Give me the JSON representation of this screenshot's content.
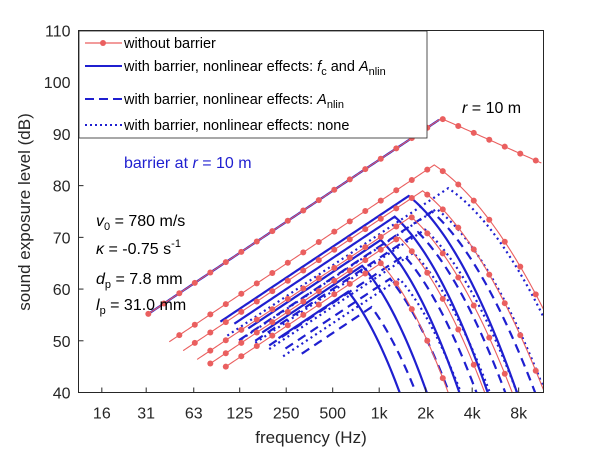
{
  "chart_data": {
    "type": "line",
    "xscale": "log2",
    "xlabel": "frequency (Hz)",
    "ylabel": "sound exposure level (dB)",
    "xlim": [
      11.3,
      11585
    ],
    "ylim": [
      40,
      110
    ],
    "xticks": [
      16,
      31,
      63,
      125,
      250,
      500,
      1000,
      2000,
      4000,
      8000
    ],
    "xtick_labels": [
      "16",
      "31",
      "63",
      "125",
      "250",
      "500",
      "1k",
      "2k",
      "4k",
      "8k"
    ],
    "yticks": [
      40,
      50,
      60,
      70,
      80,
      90,
      100,
      110
    ],
    "ytick_labels": [
      "40",
      "50",
      "60",
      "70",
      "80",
      "90",
      "100",
      "110"
    ],
    "colors": {
      "red": "#ea5f5f",
      "blue": "#1f1fd0",
      "axis": "#262626"
    },
    "legend": [
      {
        "style": "red-dot-line",
        "label": "without barrier"
      },
      {
        "style": "blue-solid",
        "label": "with barrier, nonlinear effects: ",
        "italic": "f",
        "sub": "c",
        "mid": " and ",
        "italic2": "A",
        "sub2": "nlin"
      },
      {
        "style": "blue-dashed",
        "label": "with barrier, nonlinear effects: ",
        "italic": "A",
        "sub": "nlin"
      },
      {
        "style": "blue-dotted",
        "label": "with barrier, nonlinear effects: none"
      }
    ],
    "annotations": {
      "radius": {
        "italic": "r",
        "text": " = 10 m"
      },
      "barrier": {
        "text": "barrier at ",
        "italic": "r",
        "text2": " = 10 m"
      },
      "params": [
        {
          "sym": "v",
          "sub": "0",
          "value": " = 780 m/s"
        },
        {
          "sym": "κ",
          "value": " = -0.75 s",
          "sup": "-1"
        },
        {
          "sym": "d",
          "sub": "p",
          "value": " = 7.8 mm"
        },
        {
          "sym": "l",
          "sub": "p",
          "value": " = 31.0 mm"
        }
      ]
    },
    "series": [
      {
        "name": "without barrier r=10 m",
        "kind": "red",
        "start_oct": 0.954,
        "slope": 6.0,
        "peak_oct": 7.3,
        "peak_db": 93.0,
        "hi_slope": 4.0,
        "curve": 0,
        "end_oct": 9.5
      },
      {
        "name": "without barrier 2",
        "kind": "red",
        "start_oct": 1.45,
        "slope": 6.0,
        "peak_oct": 7.15,
        "peak_db": 84.0,
        "hi_slope": 6.0,
        "curve": 2.5,
        "end_oct": 9.5
      },
      {
        "name": "without barrier 3",
        "kind": "red",
        "start_oct": 1.75,
        "slope": 6.0,
        "peak_oct": 6.9,
        "peak_db": 79.0,
        "hi_slope": 7.0,
        "curve": 3.0,
        "end_oct": 9.5
      },
      {
        "name": "without barrier 4",
        "kind": "red",
        "start_oct": 2.05,
        "slope": 6.0,
        "peak_oct": 6.65,
        "peak_db": 74.0,
        "hi_slope": 8.0,
        "curve": 3.5,
        "end_oct": 9.3
      },
      {
        "name": "without barrier 5",
        "kind": "red",
        "start_oct": 2.3,
        "slope": 6.0,
        "peak_oct": 6.4,
        "peak_db": 70.0,
        "hi_slope": 9.0,
        "curve": 4.0,
        "end_oct": 9.0
      },
      {
        "name": "without barrier 6",
        "kind": "red",
        "start_oct": 2.65,
        "slope": 6.0,
        "peak_oct": 6.0,
        "peak_db": 65.0,
        "hi_slope": 10.0,
        "curve": 5.0,
        "end_oct": 8.0
      },
      {
        "name": "fc+Anlin 1",
        "kind": "solid",
        "start_oct": 0.954,
        "slope": 6.0,
        "peak_oct": 7.3,
        "peak_db": 93.0,
        "hi_slope": 4.0,
        "curve": 0,
        "end_oct": 7.3
      },
      {
        "name": "fc+Anlin 2",
        "kind": "solid",
        "start_oct": 2.55,
        "slope": 6.0,
        "peak_oct": 6.6,
        "peak_db": 78.0,
        "hi_slope": 7.0,
        "curve": 4.0,
        "end_oct": 9.2
      },
      {
        "name": "fc+Anlin 3",
        "kind": "solid",
        "start_oct": 2.85,
        "slope": 6.0,
        "peak_oct": 6.3,
        "peak_db": 74.0,
        "hi_slope": 8.0,
        "curve": 4.5,
        "end_oct": 9.0
      },
      {
        "name": "fc+Anlin 4",
        "kind": "solid",
        "start_oct": 3.15,
        "slope": 6.0,
        "peak_oct": 6.0,
        "peak_db": 69.5,
        "hi_slope": 9.0,
        "curve": 5.0,
        "end_oct": 8.7
      },
      {
        "name": "fc+Anlin 5",
        "kind": "solid",
        "start_oct": 3.45,
        "slope": 6.0,
        "peak_oct": 5.6,
        "peak_db": 64.5,
        "hi_slope": 10.0,
        "curve": 5.5,
        "end_oct": 8.4
      },
      {
        "name": "fc+Anlin 6",
        "kind": "solid",
        "start_oct": 3.8,
        "slope": 6.0,
        "peak_oct": 5.3,
        "peak_db": 59.5,
        "hi_slope": 11.0,
        "curve": 6.0,
        "end_oct": 7.9
      },
      {
        "name": "Anlin 1",
        "kind": "dashed",
        "start_oct": 2.95,
        "slope": 6.0,
        "peak_oct": 7.1,
        "peak_db": 75.0,
        "hi_slope": 8.0,
        "curve": 3.5,
        "end_oct": 9.5
      },
      {
        "name": "Anlin 2",
        "kind": "dashed",
        "start_oct": 3.3,
        "slope": 6.0,
        "peak_oct": 6.8,
        "peak_db": 71.0,
        "hi_slope": 9.0,
        "curve": 4.0,
        "end_oct": 9.4
      },
      {
        "name": "Anlin 3",
        "kind": "dashed",
        "start_oct": 3.6,
        "slope": 6.0,
        "peak_oct": 6.5,
        "peak_db": 66.5,
        "hi_slope": 10.0,
        "curve": 4.5,
        "end_oct": 9.0
      },
      {
        "name": "Anlin 4",
        "kind": "dashed",
        "start_oct": 3.95,
        "slope": 6.0,
        "peak_oct": 6.2,
        "peak_db": 62.0,
        "hi_slope": 11.0,
        "curve": 5.0,
        "end_oct": 8.6
      },
      {
        "name": "Anlin 5",
        "kind": "dashed",
        "start_oct": 4.3,
        "slope": 6.0,
        "peak_oct": 5.8,
        "peak_db": 56.5,
        "hi_slope": 12.0,
        "curve": 5.5,
        "end_oct": 8.0
      },
      {
        "name": "none 1",
        "kind": "dotted",
        "start_oct": 2.7,
        "slope": 6.0,
        "peak_oct": 7.45,
        "peak_db": 79.5,
        "hi_slope": 6.0,
        "curve": 3.0,
        "end_oct": 9.5
      },
      {
        "name": "none 2",
        "kind": "dotted",
        "start_oct": 3.0,
        "slope": 6.0,
        "peak_oct": 7.2,
        "peak_db": 75.5,
        "hi_slope": 7.0,
        "curve": 3.5,
        "end_oct": 9.5
      },
      {
        "name": "none 3",
        "kind": "dotted",
        "start_oct": 3.3,
        "slope": 6.0,
        "peak_oct": 6.95,
        "peak_db": 71.5,
        "hi_slope": 8.0,
        "curve": 4.0,
        "end_oct": 9.5
      },
      {
        "name": "none 4",
        "kind": "dotted",
        "start_oct": 3.6,
        "slope": 6.0,
        "peak_oct": 6.7,
        "peak_db": 67.0,
        "hi_slope": 9.0,
        "curve": 4.5,
        "end_oct": 9.3
      },
      {
        "name": "none 5",
        "kind": "dotted",
        "start_oct": 3.9,
        "slope": 6.0,
        "peak_oct": 6.4,
        "peak_db": 62.0,
        "hi_slope": 10.0,
        "curve": 5.0,
        "end_oct": 8.8
      }
    ]
  }
}
